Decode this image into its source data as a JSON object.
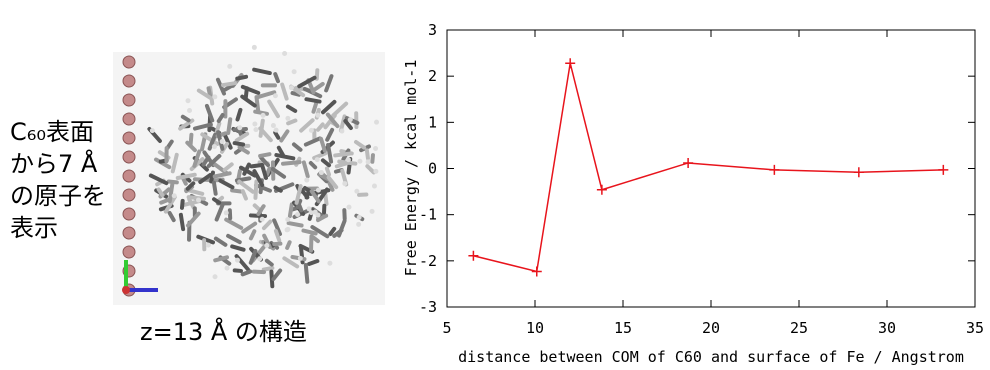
{
  "figure": {
    "side_note": [
      "C₆₀表面",
      "から7 Å",
      "の原子を",
      "表示"
    ],
    "caption": "z=13 Å の構造"
  },
  "chart_data": {
    "type": "line",
    "xlabel": "distance between COM of C60 and surface of Fe / Angstrom",
    "ylabel": "Free Energy / kcal mol-1",
    "x": [
      6.5,
      10.1,
      12.0,
      13.8,
      18.7,
      23.6,
      28.4,
      33.2
    ],
    "series": [
      {
        "name": "Free Energy",
        "color": "#e8141c",
        "values": [
          -1.89,
          -2.23,
          2.28,
          -0.46,
          0.12,
          -0.03,
          -0.08,
          -0.03
        ]
      }
    ],
    "xlim": [
      5,
      35
    ],
    "xticks": [
      5,
      10,
      15,
      20,
      25,
      30,
      35
    ],
    "ylim": [
      -3,
      3
    ],
    "yticks": [
      -3,
      -2,
      -1,
      0,
      1,
      2,
      3
    ],
    "grid": false
  }
}
